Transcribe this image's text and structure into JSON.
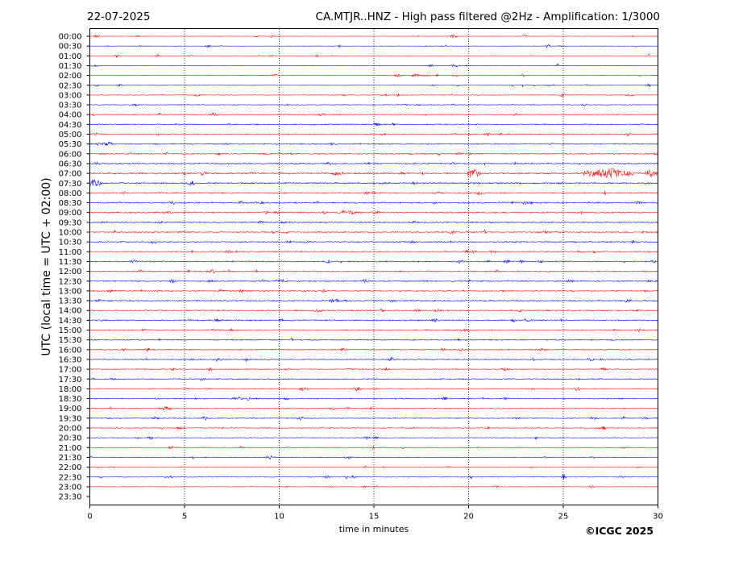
{
  "header": {
    "date": "22-07-2025",
    "title": "CA.MTJR..HNZ - High pass filtered @2Hz - Amplification: 1/3000"
  },
  "footer": {
    "copyright": "©ICGC 2025"
  },
  "colors": {
    "trace_even": "#ff0000",
    "trace_odd": "#0000ff",
    "axis": "#000000",
    "grid": "#000000",
    "background": "#ffffff"
  },
  "chart_data": {
    "type": "line",
    "title": "CA.MTJR..HNZ - High pass filtered @2Hz - Amplification: 1/3000",
    "xlabel": "time in minutes",
    "ylabel": "UTC (local time = UTC + 02:00)",
    "xlim": [
      0,
      30
    ],
    "xticks": [
      0,
      5,
      10,
      15,
      20,
      25,
      30
    ],
    "grid": "vertical dotted lines at 5-minute intervals",
    "rows": [
      "00:00",
      "00:30",
      "01:00",
      "01:30",
      "02:00",
      "02:30",
      "03:00",
      "03:30",
      "04:00",
      "04:30",
      "05:00",
      "05:30",
      "06:00",
      "06:30",
      "07:00",
      "07:30",
      "08:00",
      "08:30",
      "09:00",
      "09:30",
      "10:00",
      "10:30",
      "11:00",
      "11:30",
      "12:00",
      "12:30",
      "13:00",
      "13:30",
      "14:00",
      "14:30",
      "15:00",
      "15:30",
      "16:00",
      "16:30",
      "17:00",
      "17:30",
      "18:00",
      "18:30",
      "19:00",
      "19:30",
      "20:00",
      "20:30",
      "21:00",
      "21:30",
      "22:00",
      "22:30",
      "23:00",
      "23:30"
    ],
    "trace_colors": "alternating blue and red per row",
    "recorded_rows": 47,
    "noise_level": [
      0.15,
      0.15,
      0.2,
      0.25,
      0.3,
      0.25,
      0.3,
      0.35,
      0.4,
      0.55,
      0.5,
      0.55,
      0.55,
      0.6,
      0.8,
      0.7,
      0.6,
      0.65,
      0.6,
      0.6,
      0.6,
      0.55,
      0.55,
      0.6,
      0.6,
      0.6,
      0.55,
      0.6,
      0.6,
      0.6,
      0.55,
      0.55,
      0.5,
      0.5,
      0.45,
      0.5,
      0.45,
      0.5,
      0.45,
      0.45,
      0.4,
      0.35,
      0.35,
      0.3,
      0.3,
      0.3,
      0.2,
      0
    ],
    "events": [
      {
        "row": "07:00",
        "start": 19.95,
        "end": 20.6,
        "amp": 6
      },
      {
        "row": "07:00",
        "start": 26.0,
        "end": 28.7,
        "amp": 5
      },
      {
        "row": "07:00",
        "start": 29.3,
        "end": 30.0,
        "amp": 3.5
      },
      {
        "row": "07:30",
        "start": 0.0,
        "end": 0.6,
        "amp": 3.5
      },
      {
        "row": "10:00",
        "start": 20.8,
        "end": 20.9,
        "amp": 7
      },
      {
        "row": "09:30",
        "start": 17.05,
        "end": 17.2,
        "amp": 3
      },
      {
        "row": "18:30",
        "start": 7.5,
        "end": 8.1,
        "amp": 2
      },
      {
        "row": "18:30",
        "start": 18.6,
        "end": 18.9,
        "amp": 2
      },
      {
        "row": "19:00",
        "start": 4.0,
        "end": 4.3,
        "amp": 2
      },
      {
        "row": "20:30",
        "start": 14.5,
        "end": 14.8,
        "amp": 2
      },
      {
        "row": "13:30",
        "start": 28.2,
        "end": 28.6,
        "amp": 1.5
      },
      {
        "row": "11:30",
        "start": 29.6,
        "end": 29.9,
        "amp": 1.5
      },
      {
        "row": "06:00",
        "start": 6.7,
        "end": 6.9,
        "amp": 1.5
      },
      {
        "row": "05:30",
        "start": 0.3,
        "end": 0.6,
        "amp": 1.5
      },
      {
        "row": "10:30",
        "start": 10.4,
        "end": 10.7,
        "amp": 1.5
      },
      {
        "row": "08:30",
        "start": 23.2,
        "end": 23.4,
        "amp": 1.5
      }
    ]
  }
}
